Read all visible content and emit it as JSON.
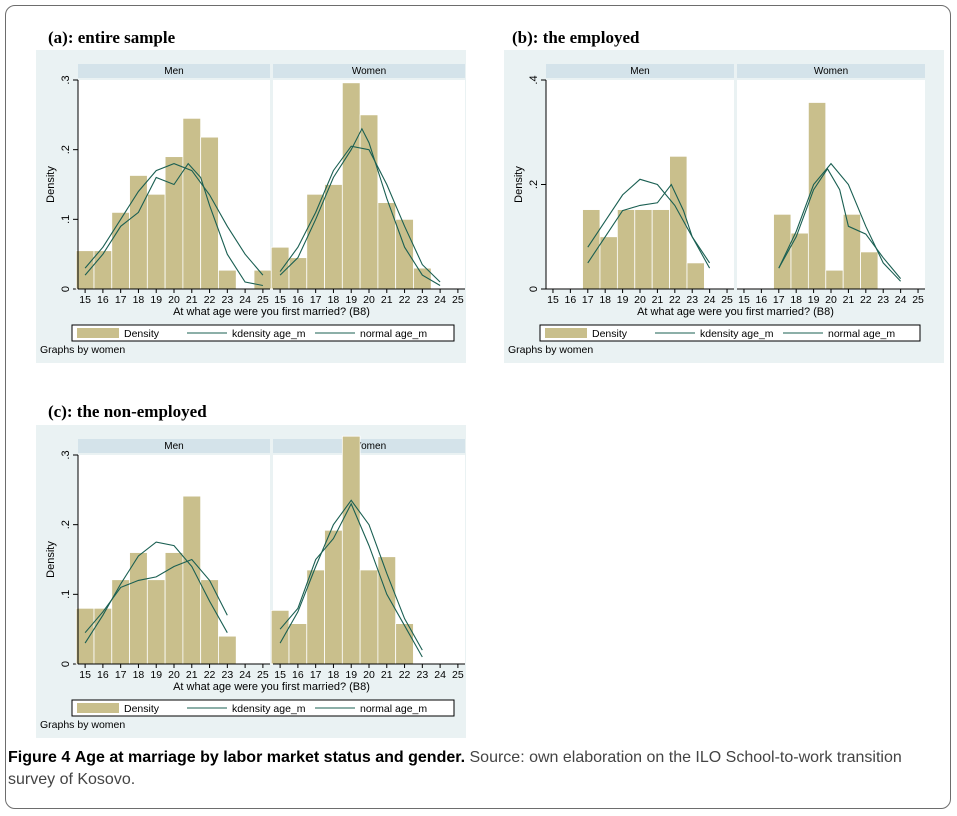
{
  "figure": {
    "label": "Figure 4",
    "title": "Age at marriage by labor market status and gender.",
    "source": "Source: own elaboration on the ILO School-to-work transition survey of Kosovo."
  },
  "colors": {
    "panel_bg": "#eaf2f3",
    "strip_bg": "#d4e3ea",
    "bar_fill": "#c9bf8c",
    "bar_stroke": "#ffffff",
    "line": "#1a5f52"
  },
  "legend": {
    "items": [
      "Density",
      "kdensity age_m",
      "normal age_m"
    ]
  },
  "graphs_by": "Graphs by women",
  "chart_data": [
    {
      "type": "bar",
      "title": "(a): entire sample",
      "ylabel": "Density",
      "xlabel": "At what age were you first married? (B8)",
      "xlim": [
        14.6,
        25.4
      ],
      "ylim": [
        0,
        0.3
      ],
      "yticks": [
        {
          "v": 0,
          "t": "0"
        },
        {
          "v": 0.1,
          "t": ".1"
        },
        {
          "v": 0.2,
          "t": ".2"
        },
        {
          "v": 0.3,
          "t": ".3"
        }
      ],
      "xticks": [
        15,
        16,
        17,
        18,
        19,
        20,
        21,
        22,
        23,
        24,
        25
      ],
      "legend": "bottom",
      "facets": [
        {
          "label": "Men",
          "bars": [
            [
              15,
              0.055
            ],
            [
              16,
              0.055
            ],
            [
              17,
              0.11
            ],
            [
              18,
              0.163
            ],
            [
              19,
              0.136
            ],
            [
              20,
              0.19
            ],
            [
              21,
              0.245
            ],
            [
              22,
              0.218
            ],
            [
              23,
              0.027
            ],
            [
              24,
              0
            ],
            [
              25,
              0.027
            ]
          ],
          "kdensity": [
            [
              15,
              0.02
            ],
            [
              16,
              0.05
            ],
            [
              17,
              0.09
            ],
            [
              18,
              0.11
            ],
            [
              19,
              0.16
            ],
            [
              20,
              0.15
            ],
            [
              20.8,
              0.18
            ],
            [
              21.5,
              0.16
            ],
            [
              22,
              0.12
            ],
            [
              23,
              0.05
            ],
            [
              24,
              0.01
            ],
            [
              25,
              0.005
            ]
          ],
          "normal": [
            [
              15,
              0.03
            ],
            [
              16,
              0.06
            ],
            [
              17,
              0.1
            ],
            [
              18,
              0.14
            ],
            [
              19,
              0.17
            ],
            [
              20,
              0.18
            ],
            [
              21,
              0.17
            ],
            [
              22,
              0.135
            ],
            [
              23,
              0.09
            ],
            [
              24,
              0.05
            ],
            [
              25,
              0.02
            ]
          ]
        },
        {
          "label": "Women",
          "bars": [
            [
              15,
              0.06
            ],
            [
              16,
              0.045
            ],
            [
              17,
              0.136
            ],
            [
              18,
              0.15
            ],
            [
              19,
              0.296
            ],
            [
              20,
              0.25
            ],
            [
              21,
              0.124
            ],
            [
              22,
              0.1
            ],
            [
              23,
              0.03
            ],
            [
              24,
              0
            ]
          ],
          "kdensity": [
            [
              15,
              0.02
            ],
            [
              16,
              0.045
            ],
            [
              17,
              0.1
            ],
            [
              18,
              0.16
            ],
            [
              19,
              0.2
            ],
            [
              19.6,
              0.23
            ],
            [
              20,
              0.21
            ],
            [
              21,
              0.13
            ],
            [
              22,
              0.06
            ],
            [
              23,
              0.02
            ],
            [
              24,
              0.005
            ]
          ],
          "normal": [
            [
              15,
              0.025
            ],
            [
              16,
              0.06
            ],
            [
              17,
              0.11
            ],
            [
              18,
              0.17
            ],
            [
              19,
              0.205
            ],
            [
              20,
              0.2
            ],
            [
              21,
              0.15
            ],
            [
              22,
              0.09
            ],
            [
              23,
              0.035
            ],
            [
              24,
              0.01
            ]
          ]
        }
      ]
    },
    {
      "type": "bar",
      "title": "(b): the employed",
      "ylabel": "Density",
      "xlabel": "At what age were you first married? (B8)",
      "xlim": [
        14.6,
        25.4
      ],
      "ylim": [
        0,
        0.4
      ],
      "yticks": [
        {
          "v": 0,
          "t": "0"
        },
        {
          "v": 0.2,
          "t": ".2"
        },
        {
          "v": 0.4,
          "t": ".4"
        }
      ],
      "xticks": [
        15,
        16,
        17,
        18,
        19,
        20,
        21,
        22,
        23,
        24,
        25
      ],
      "legend": "bottom",
      "facets": [
        {
          "label": "Men",
          "bars": [
            [
              17.2,
              0.152
            ],
            [
              18.2,
              0.1
            ],
            [
              19.2,
              0.152
            ],
            [
              20.2,
              0.152
            ],
            [
              21.2,
              0.152
            ],
            [
              22.2,
              0.254
            ],
            [
              23.2,
              0.05
            ]
          ],
          "kdensity": [
            [
              17,
              0.05
            ],
            [
              18,
              0.1
            ],
            [
              19,
              0.15
            ],
            [
              20,
              0.16
            ],
            [
              21,
              0.165
            ],
            [
              21.8,
              0.2
            ],
            [
              22.5,
              0.15
            ],
            [
              23,
              0.1
            ],
            [
              24,
              0.04
            ]
          ],
          "normal": [
            [
              17,
              0.08
            ],
            [
              18,
              0.13
            ],
            [
              19,
              0.18
            ],
            [
              20,
              0.21
            ],
            [
              21,
              0.2
            ],
            [
              22,
              0.16
            ],
            [
              23,
              0.1
            ],
            [
              24,
              0.05
            ]
          ]
        },
        {
          "label": "Women",
          "bars": [
            [
              17.2,
              0.143
            ],
            [
              18.2,
              0.107
            ],
            [
              19.2,
              0.357
            ],
            [
              20.2,
              0.036
            ],
            [
              21.2,
              0.143
            ],
            [
              22.2,
              0.071
            ]
          ],
          "kdensity": [
            [
              17,
              0.04
            ],
            [
              18,
              0.1
            ],
            [
              19,
              0.19
            ],
            [
              19.8,
              0.23
            ],
            [
              20.5,
              0.19
            ],
            [
              21,
              0.12
            ],
            [
              22,
              0.105
            ],
            [
              23,
              0.06
            ],
            [
              24,
              0.02
            ]
          ],
          "normal": [
            [
              17,
              0.04
            ],
            [
              18,
              0.11
            ],
            [
              19,
              0.2
            ],
            [
              20,
              0.24
            ],
            [
              21,
              0.2
            ],
            [
              22,
              0.12
            ],
            [
              23,
              0.05
            ],
            [
              24,
              0.015
            ]
          ]
        }
      ]
    },
    {
      "type": "bar",
      "title": "(c): the non-employed",
      "ylabel": "Density",
      "xlabel": "At what age were you first married? (B8)",
      "xlim": [
        14.6,
        25.4
      ],
      "ylim": [
        0,
        0.3
      ],
      "yticks": [
        {
          "v": 0,
          "t": "0"
        },
        {
          "v": 0.1,
          "t": ".1"
        },
        {
          "v": 0.2,
          "t": ".2"
        },
        {
          "v": 0.3,
          "t": ".3"
        }
      ],
      "xticks": [
        15,
        16,
        17,
        18,
        19,
        20,
        21,
        22,
        23,
        24,
        25
      ],
      "legend": "bottom",
      "facets": [
        {
          "label": "Men",
          "bars": [
            [
              15,
              0.08
            ],
            [
              16,
              0.08
            ],
            [
              17,
              0.121
            ],
            [
              18,
              0.16
            ],
            [
              19,
              0.121
            ],
            [
              20,
              0.16
            ],
            [
              21,
              0.241
            ],
            [
              22,
              0.121
            ],
            [
              23,
              0.04
            ]
          ],
          "kdensity": [
            [
              15,
              0.045
            ],
            [
              16,
              0.075
            ],
            [
              17,
              0.11
            ],
            [
              18,
              0.12
            ],
            [
              19,
              0.125
            ],
            [
              20,
              0.14
            ],
            [
              21,
              0.15
            ],
            [
              22,
              0.12
            ],
            [
              23,
              0.07
            ]
          ],
          "normal": [
            [
              15,
              0.03
            ],
            [
              16,
              0.07
            ],
            [
              17,
              0.115
            ],
            [
              18,
              0.155
            ],
            [
              19,
              0.175
            ],
            [
              20,
              0.17
            ],
            [
              21,
              0.14
            ],
            [
              22,
              0.09
            ],
            [
              23,
              0.045
            ]
          ]
        },
        {
          "label": "Women",
          "bars": [
            [
              15,
              0.077
            ],
            [
              16,
              0.058
            ],
            [
              17,
              0.135
            ],
            [
              18,
              0.192
            ],
            [
              19,
              0.327
            ],
            [
              20,
              0.135
            ],
            [
              21,
              0.154
            ],
            [
              22,
              0.058
            ]
          ],
          "kdensity": [
            [
              15,
              0.05
            ],
            [
              16,
              0.08
            ],
            [
              17,
              0.15
            ],
            [
              18,
              0.18
            ],
            [
              19,
              0.23
            ],
            [
              20,
              0.17
            ],
            [
              21,
              0.1
            ],
            [
              22,
              0.055
            ],
            [
              23,
              0.01
            ]
          ],
          "normal": [
            [
              15,
              0.03
            ],
            [
              16,
              0.075
            ],
            [
              17,
              0.14
            ],
            [
              18,
              0.2
            ],
            [
              19,
              0.235
            ],
            [
              20,
              0.2
            ],
            [
              21,
              0.13
            ],
            [
              22,
              0.065
            ],
            [
              23,
              0.02
            ]
          ]
        }
      ]
    }
  ]
}
